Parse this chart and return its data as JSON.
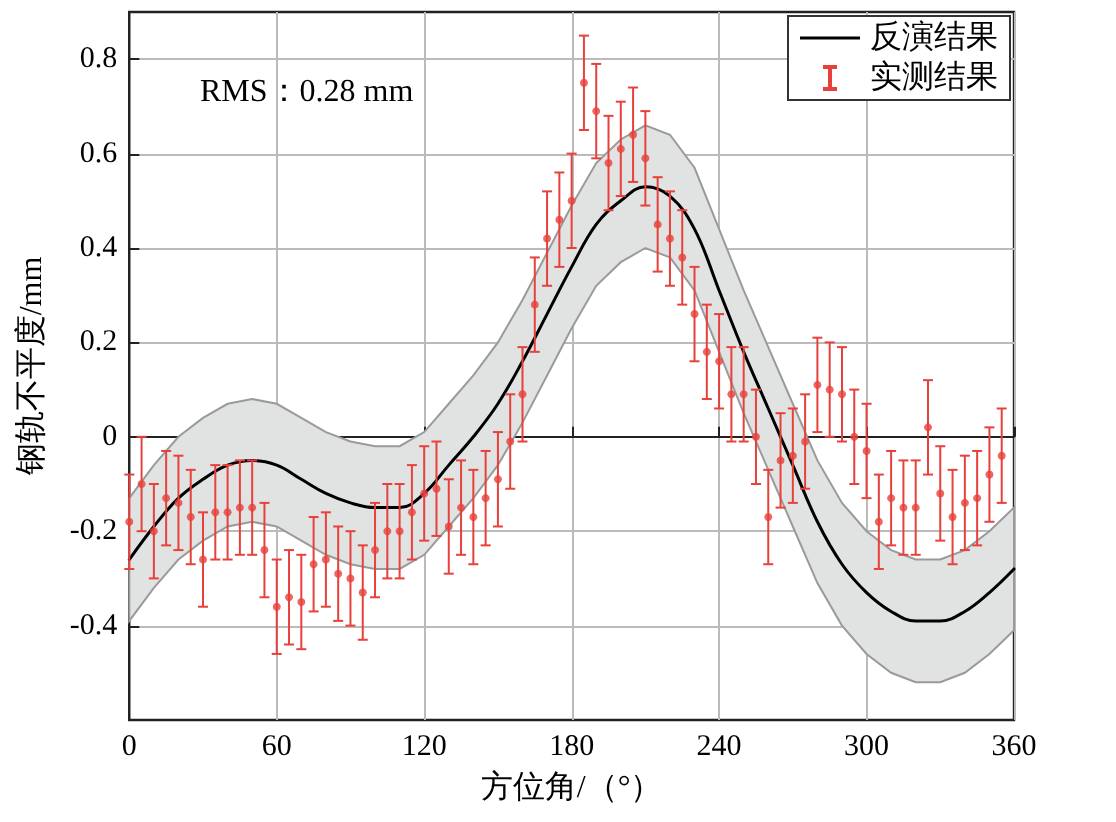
{
  "chart_data": {
    "type": "line",
    "xlabel": "方位角/（°）",
    "ylabel": "钢轨不平度/mm",
    "annotations": [
      "RMS：0.28 mm"
    ],
    "xlim": [
      0,
      360
    ],
    "xticks": [
      0,
      60,
      120,
      180,
      240,
      300,
      360
    ],
    "ylim": [
      -0.6,
      0.9
    ],
    "yticks": [
      -0.4,
      -0.2,
      0,
      0.2,
      0.4,
      0.6,
      0.8
    ],
    "grid": true,
    "legend": "top right",
    "series": [
      {
        "name": "反演结果",
        "color": "#000000",
        "marker": "none",
        "x": [
          0,
          10,
          20,
          30,
          40,
          50,
          60,
          70,
          80,
          90,
          100,
          110,
          120,
          130,
          140,
          150,
          160,
          170,
          180,
          190,
          200,
          210,
          220,
          230,
          240,
          250,
          260,
          270,
          280,
          290,
          300,
          310,
          320,
          330,
          340,
          350,
          360
        ],
        "values": [
          -0.26,
          -0.19,
          -0.13,
          -0.09,
          -0.06,
          -0.05,
          -0.06,
          -0.09,
          -0.12,
          -0.14,
          -0.15,
          -0.15,
          -0.12,
          -0.06,
          0.0,
          0.07,
          0.16,
          0.26,
          0.36,
          0.45,
          0.5,
          0.53,
          0.51,
          0.44,
          0.31,
          0.18,
          0.06,
          -0.06,
          -0.18,
          -0.27,
          -0.33,
          -0.37,
          -0.39,
          -0.39,
          -0.37,
          -0.33,
          -0.28
        ],
        "upper": [
          -0.13,
          -0.06,
          0.0,
          0.04,
          0.07,
          0.08,
          0.07,
          0.04,
          0.01,
          -0.01,
          -0.02,
          -0.02,
          0.01,
          0.07,
          0.13,
          0.2,
          0.29,
          0.39,
          0.49,
          0.58,
          0.63,
          0.66,
          0.64,
          0.57,
          0.44,
          0.31,
          0.19,
          0.07,
          -0.05,
          -0.14,
          -0.2,
          -0.24,
          -0.26,
          -0.26,
          -0.24,
          -0.2,
          -0.15
        ],
        "lower": [
          -0.39,
          -0.32,
          -0.26,
          -0.22,
          -0.19,
          -0.18,
          -0.19,
          -0.22,
          -0.25,
          -0.27,
          -0.28,
          -0.28,
          -0.25,
          -0.19,
          -0.13,
          -0.06,
          0.03,
          0.13,
          0.23,
          0.32,
          0.37,
          0.4,
          0.38,
          0.31,
          0.18,
          0.05,
          -0.07,
          -0.19,
          -0.31,
          -0.4,
          -0.46,
          -0.5,
          -0.52,
          -0.52,
          -0.5,
          -0.46,
          -0.41
        ]
      },
      {
        "name": "实测结果",
        "type": "scatter",
        "color": "#e8403a",
        "x": [
          0,
          5,
          10,
          15,
          20,
          25,
          30,
          35,
          40,
          45,
          50,
          55,
          60,
          65,
          70,
          75,
          80,
          85,
          90,
          95,
          100,
          105,
          110,
          115,
          120,
          125,
          130,
          135,
          140,
          145,
          150,
          155,
          160,
          165,
          170,
          175,
          180,
          185,
          190,
          195,
          200,
          205,
          210,
          215,
          220,
          225,
          230,
          235,
          240,
          245,
          250,
          255,
          260,
          265,
          270,
          275,
          280,
          285,
          290,
          295,
          300,
          305,
          310,
          315,
          320,
          325,
          330,
          335,
          340,
          345,
          350,
          355
        ],
        "values": [
          -0.18,
          -0.1,
          -0.2,
          -0.13,
          -0.14,
          -0.17,
          -0.26,
          -0.16,
          -0.16,
          -0.15,
          -0.15,
          -0.24,
          -0.36,
          -0.34,
          -0.35,
          -0.27,
          -0.26,
          -0.29,
          -0.3,
          -0.33,
          -0.24,
          -0.2,
          -0.2,
          -0.16,
          -0.12,
          -0.11,
          -0.19,
          -0.15,
          -0.17,
          -0.13,
          -0.09,
          -0.01,
          0.09,
          0.28,
          0.42,
          0.46,
          0.5,
          0.75,
          0.69,
          0.58,
          0.61,
          0.64,
          0.59,
          0.45,
          0.42,
          0.38,
          0.26,
          0.18,
          0.16,
          0.09,
          0.09,
          0.0,
          -0.17,
          -0.05,
          -0.04,
          -0.01,
          0.11,
          0.1,
          0.09,
          0.0,
          -0.03,
          -0.18,
          -0.13,
          -0.15,
          -0.15,
          0.02,
          -0.12,
          -0.17,
          -0.14,
          -0.13,
          -0.08,
          -0.04
        ],
        "errors": [
          0.1,
          0.1,
          0.1,
          0.1,
          0.1,
          0.1,
          0.1,
          0.1,
          0.1,
          0.1,
          0.1,
          0.1,
          0.1,
          0.1,
          0.1,
          0.1,
          0.1,
          0.1,
          0.1,
          0.1,
          0.1,
          0.1,
          0.1,
          0.1,
          0.1,
          0.1,
          0.1,
          0.1,
          0.1,
          0.1,
          0.1,
          0.1,
          0.1,
          0.1,
          0.1,
          0.1,
          0.1,
          0.1,
          0.1,
          0.1,
          0.1,
          0.1,
          0.1,
          0.1,
          0.1,
          0.1,
          0.1,
          0.1,
          0.1,
          0.1,
          0.1,
          0.1,
          0.1,
          0.1,
          0.1,
          0.1,
          0.1,
          0.1,
          0.1,
          0.1,
          0.1,
          0.1,
          0.1,
          0.1,
          0.1,
          0.1,
          0.1,
          0.1,
          0.1,
          0.1,
          0.1,
          0.1
        ]
      }
    ]
  }
}
